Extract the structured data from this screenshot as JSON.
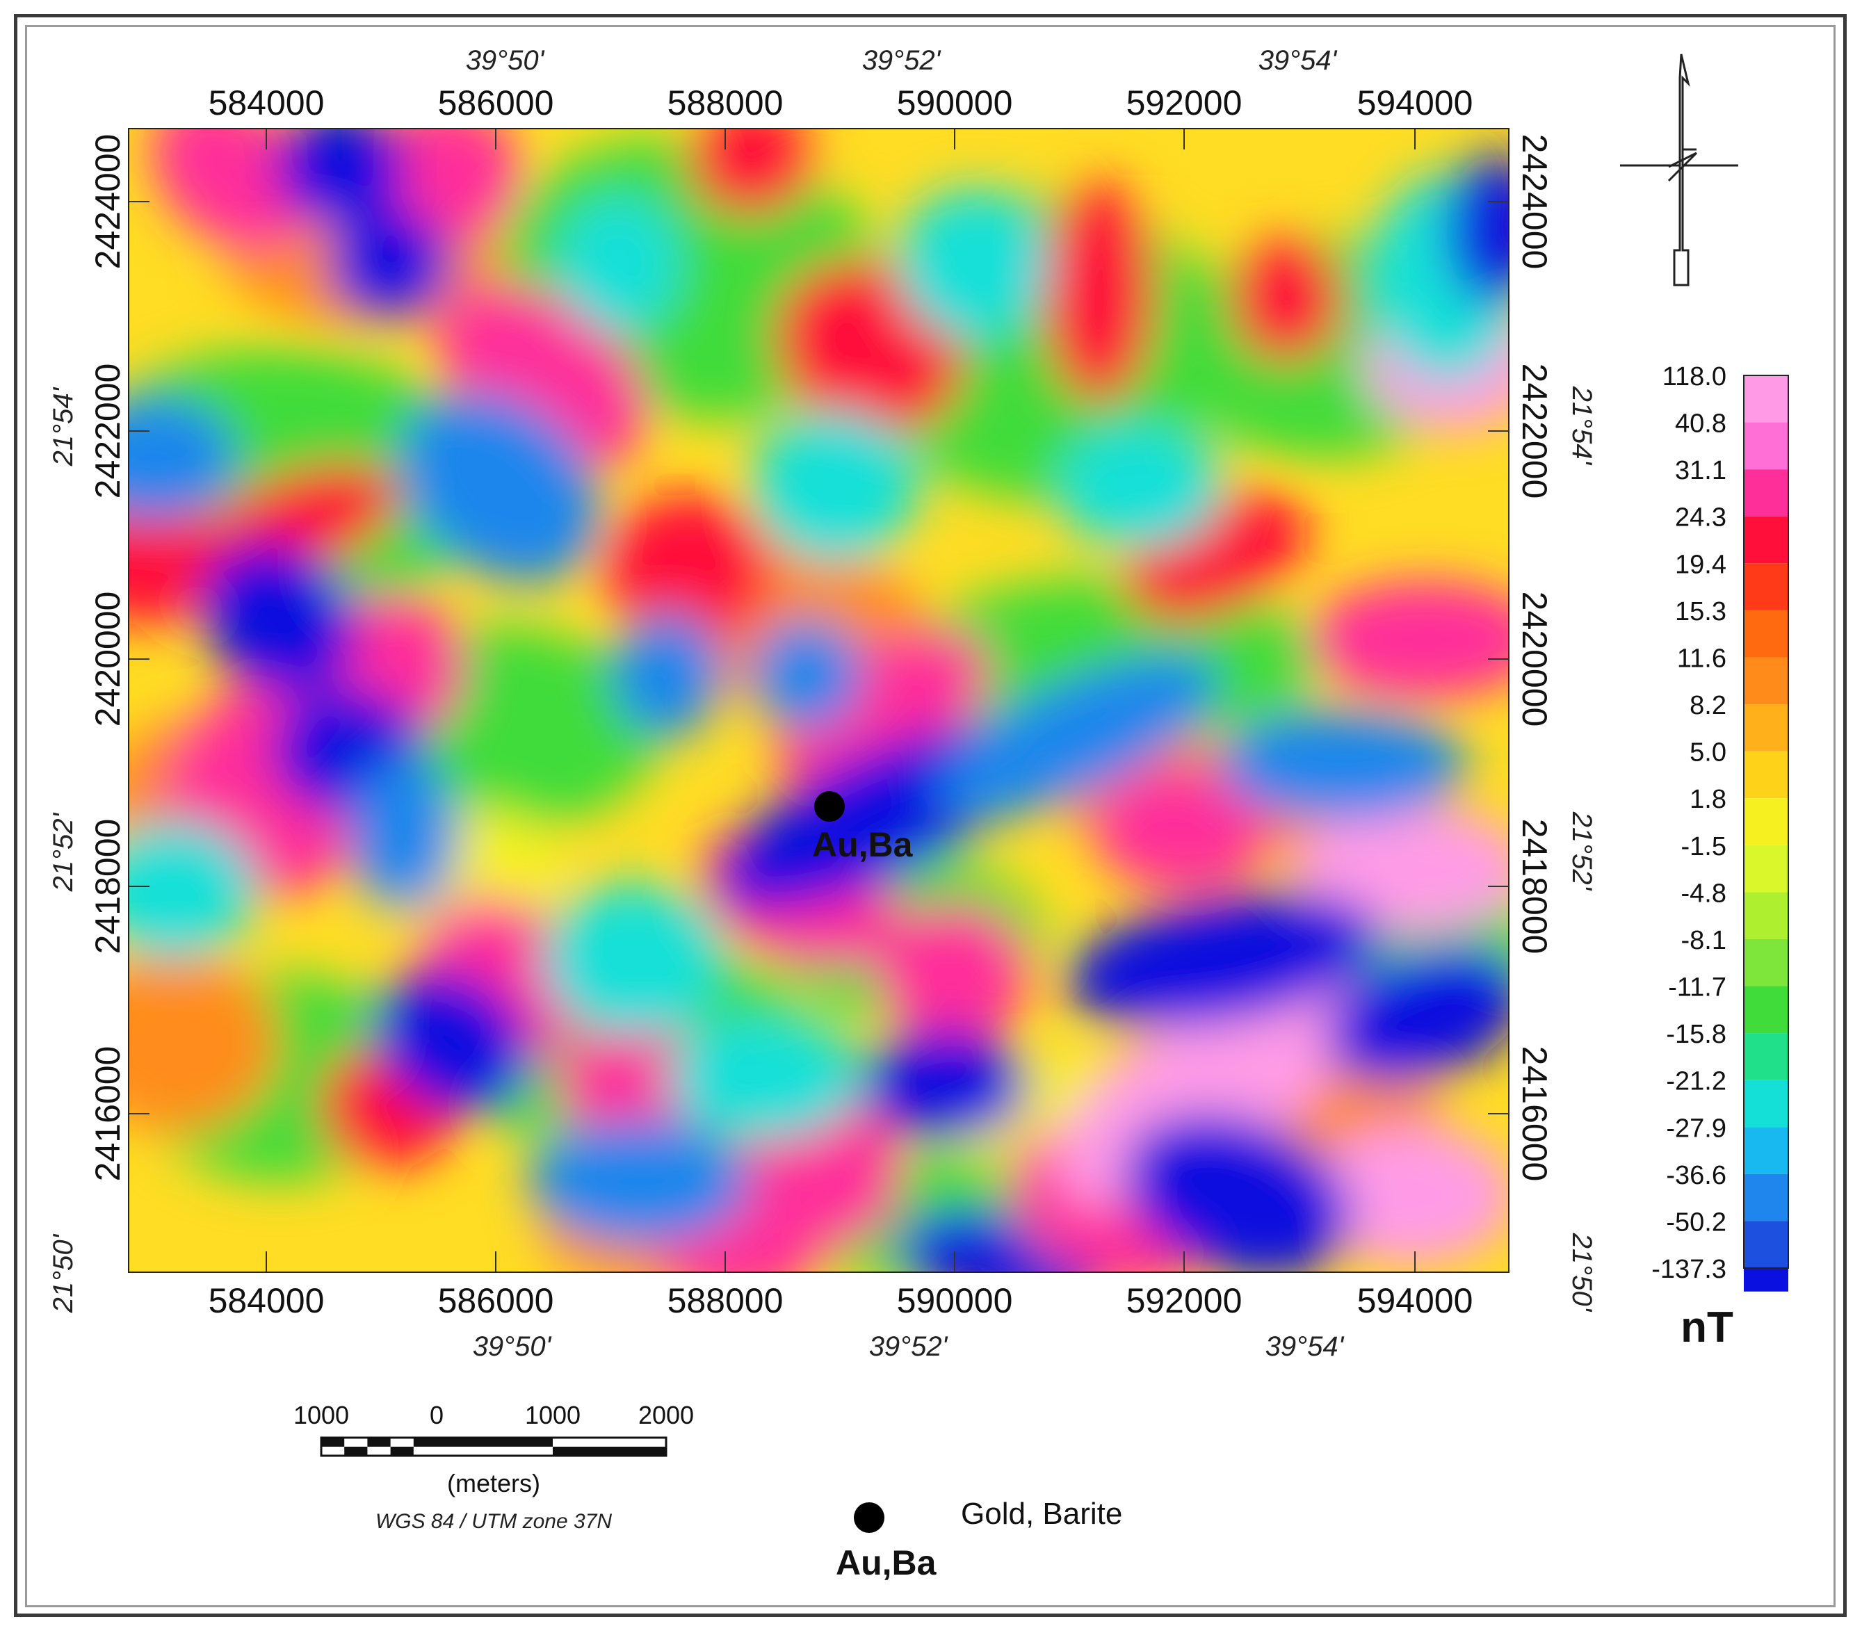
{
  "map": {
    "x_ticks_utm": [
      "584000",
      "586000",
      "588000",
      "590000",
      "592000",
      "594000"
    ],
    "y_ticks_utm": [
      "2424000",
      "2422000",
      "2420000",
      "2418000",
      "2416000"
    ],
    "lon_ticks": [
      "39°50'",
      "39°52'",
      "39°54'"
    ],
    "lat_ticks": [
      "21°54'",
      "21°52'",
      "21°50'"
    ]
  },
  "colorbar": {
    "unit": "nT",
    "labels": [
      "118.0",
      "40.8",
      "31.1",
      "24.3",
      "19.4",
      "15.3",
      "11.6",
      "8.2",
      "5.0",
      "1.8",
      "-1.5",
      "-4.8",
      "-8.1",
      "-11.7",
      "-15.8",
      "-21.2",
      "-27.9",
      "-36.6",
      "-50.2",
      "-137.3"
    ],
    "colors": [
      "#ff9be6",
      "#ff6fd6",
      "#ff2f9a",
      "#ff0f3a",
      "#ff3a18",
      "#ff6a10",
      "#ff8c1a",
      "#ffb01a",
      "#ffd21a",
      "#f7f020",
      "#d9f72a",
      "#aef030",
      "#7ee63a",
      "#3fdc3a",
      "#20e08a",
      "#14e0d8",
      "#18b8f0",
      "#1e86ec",
      "#1e50e0",
      "#0a10e0"
    ]
  },
  "site": {
    "label": "Au,Ba"
  },
  "scale_bar": {
    "labels": [
      "1000",
      "0",
      "1000",
      "2000"
    ],
    "unit": "(meters)",
    "projection": "WGS 84 / UTM zone 37N"
  },
  "legend": {
    "symbol_label": "Au,Ba",
    "description": "Gold, Barite"
  }
}
